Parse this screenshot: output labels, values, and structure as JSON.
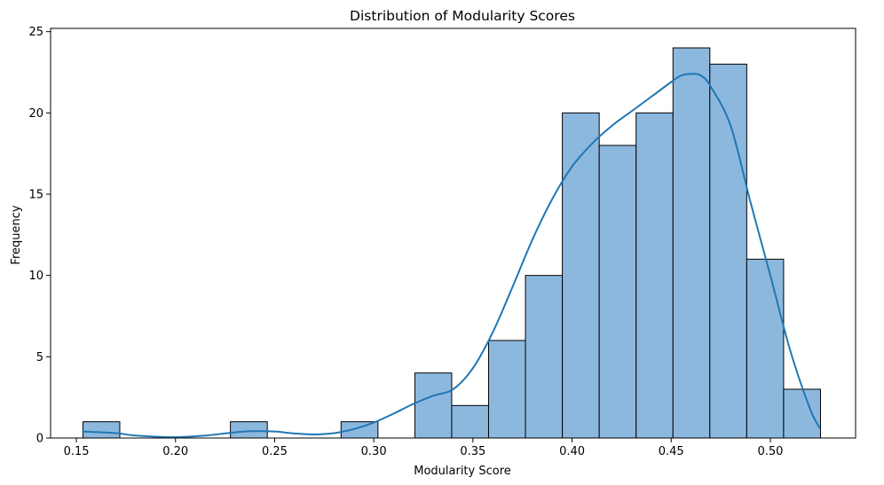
{
  "chart_data": {
    "type": "bar",
    "subtype": "histogram-with-kde",
    "title": "Distribution of Modularity Scores",
    "xlabel": "Modularity Score",
    "ylabel": "Frequency",
    "xlim": [
      0.137,
      0.543
    ],
    "ylim": [
      0,
      25.2
    ],
    "xticks": [
      0.15,
      0.2,
      0.25,
      0.3,
      0.35,
      0.4,
      0.45,
      0.5
    ],
    "xtick_labels": [
      "0.15",
      "0.20",
      "0.25",
      "0.30",
      "0.35",
      "0.40",
      "0.45",
      "0.50"
    ],
    "yticks": [
      0,
      5,
      10,
      15,
      20,
      25
    ],
    "ytick_labels": [
      "0",
      "5",
      "10",
      "15",
      "20",
      "25"
    ],
    "grid": false,
    "bar_color": "#8db8de",
    "bar_edge_color": "#000000",
    "kde_color": "#1f77b4",
    "bins": [
      {
        "x0": 0.1533,
        "x1": 0.1719,
        "count": 1
      },
      {
        "x0": 0.1719,
        "x1": 0.1905,
        "count": 0
      },
      {
        "x0": 0.1905,
        "x1": 0.2091,
        "count": 0
      },
      {
        "x0": 0.2091,
        "x1": 0.2277,
        "count": 0
      },
      {
        "x0": 0.2277,
        "x1": 0.2463,
        "count": 1
      },
      {
        "x0": 0.2463,
        "x1": 0.2649,
        "count": 0
      },
      {
        "x0": 0.2649,
        "x1": 0.2835,
        "count": 0
      },
      {
        "x0": 0.2835,
        "x1": 0.3021,
        "count": 1
      },
      {
        "x0": 0.3021,
        "x1": 0.3207,
        "count": 0
      },
      {
        "x0": 0.3207,
        "x1": 0.3393,
        "count": 4
      },
      {
        "x0": 0.3393,
        "x1": 0.3579,
        "count": 2
      },
      {
        "x0": 0.3579,
        "x1": 0.3765,
        "count": 6
      },
      {
        "x0": 0.3765,
        "x1": 0.3951,
        "count": 10
      },
      {
        "x0": 0.3951,
        "x1": 0.4137,
        "count": 20
      },
      {
        "x0": 0.4137,
        "x1": 0.4323,
        "count": 18
      },
      {
        "x0": 0.4323,
        "x1": 0.4509,
        "count": 20
      },
      {
        "x0": 0.4509,
        "x1": 0.4695,
        "count": 24
      },
      {
        "x0": 0.4695,
        "x1": 0.4881,
        "count": 23
      },
      {
        "x0": 0.4881,
        "x1": 0.5067,
        "count": 11
      },
      {
        "x0": 0.5067,
        "x1": 0.5253,
        "count": 3
      }
    ],
    "kde": {
      "x": [
        0.153,
        0.17,
        0.18,
        0.2,
        0.215,
        0.23,
        0.24,
        0.25,
        0.26,
        0.27,
        0.28,
        0.29,
        0.3,
        0.31,
        0.32,
        0.33,
        0.34,
        0.35,
        0.36,
        0.37,
        0.38,
        0.39,
        0.4,
        0.41,
        0.42,
        0.43,
        0.44,
        0.45,
        0.455,
        0.46,
        0.465,
        0.47,
        0.48,
        0.49,
        0.5,
        0.51,
        0.52,
        0.525
      ],
      "y": [
        0.4,
        0.3,
        0.15,
        0.05,
        0.15,
        0.35,
        0.42,
        0.4,
        0.28,
        0.22,
        0.3,
        0.55,
        0.95,
        1.5,
        2.1,
        2.6,
        3.0,
        4.3,
        6.5,
        9.3,
        12.2,
        14.7,
        16.7,
        18.1,
        19.2,
        20.1,
        21.0,
        21.9,
        22.3,
        22.4,
        22.3,
        21.6,
        19.2,
        14.5,
        10.0,
        5.4,
        1.8,
        0.6
      ]
    }
  }
}
